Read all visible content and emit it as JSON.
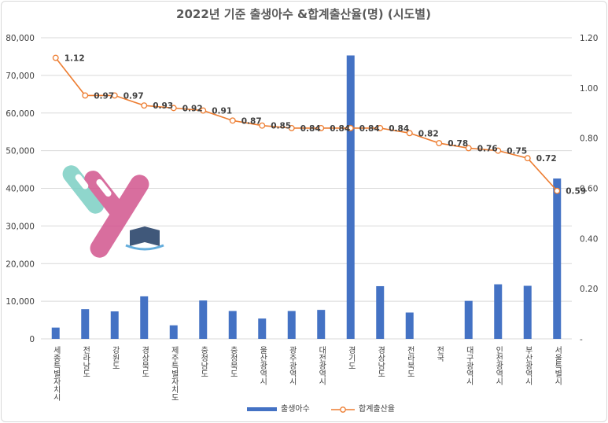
{
  "chart_data": {
    "type": "bar",
    "title": "2022년 기준 출생아수 &합계출산율(명) (시도별)",
    "categories": [
      "세종특별자치시",
      "전라남도",
      "강원도",
      "경상북도",
      "제주특별자치도",
      "충청남도",
      "충청북도",
      "울산광역시",
      "광주광역시",
      "대전광역시",
      "경기도",
      "경상남도",
      "전라북도",
      "전국",
      "대구광역시",
      "인천광역시",
      "부산광역시",
      "서울특별시"
    ],
    "series": [
      {
        "name": "출생아수",
        "type": "bar",
        "axis": "left",
        "color": "#4472C4",
        "values": [
          3000,
          7900,
          7300,
          11300,
          3600,
          10200,
          7400,
          5400,
          7400,
          7700,
          75300,
          14000,
          7000,
          null,
          10100,
          14500,
          14100,
          42600
        ]
      },
      {
        "name": "합계출산율",
        "type": "line",
        "axis": "right",
        "color": "#ED7D31",
        "values": [
          1.12,
          0.97,
          0.97,
          0.93,
          0.92,
          0.91,
          0.87,
          0.85,
          0.84,
          0.84,
          0.84,
          0.84,
          0.82,
          0.78,
          0.76,
          0.75,
          0.72,
          0.59
        ]
      }
    ],
    "left_axis": {
      "ylim": [
        0,
        80000
      ],
      "ticks": [
        "0",
        "10,000",
        "20,000",
        "30,000",
        "40,000",
        "50,000",
        "60,000",
        "70,000",
        "80,000"
      ]
    },
    "right_axis": {
      "ylim": [
        0,
        1.2
      ],
      "ticks": [
        "-",
        "0.20",
        "0.40",
        "0.60",
        "0.80",
        "1.00",
        "1.20"
      ]
    },
    "data_labels": [
      "1.12",
      "0.97",
      "0.97",
      "0.93",
      "0.92",
      "0.91",
      "0.87",
      "0.85",
      "0.84",
      "0.84",
      "0.84",
      "0.84",
      "0.82",
      "0.78",
      "0.76",
      "0.75",
      "0.72",
      "0.59"
    ],
    "grid": true,
    "legend_position": "bottom"
  }
}
